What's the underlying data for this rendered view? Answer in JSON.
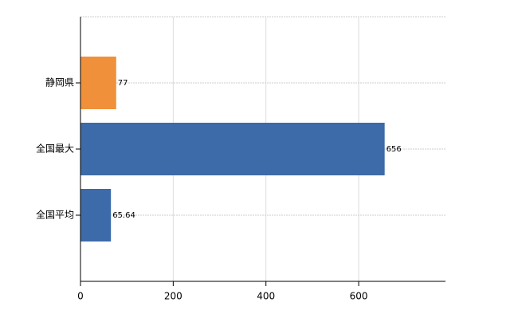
{
  "chart_data": {
    "type": "bar",
    "orientation": "horizontal",
    "categories": [
      "静岡県",
      "全国最大",
      "全国平均"
    ],
    "values": [
      77,
      656,
      65.64
    ],
    "colors": [
      "#f0903a",
      "#3d6aa8",
      "#3d6aa8"
    ],
    "xlim": [
      0,
      787.2
    ],
    "xticks": [
      0,
      200,
      400,
      600
    ],
    "grid": true
  }
}
